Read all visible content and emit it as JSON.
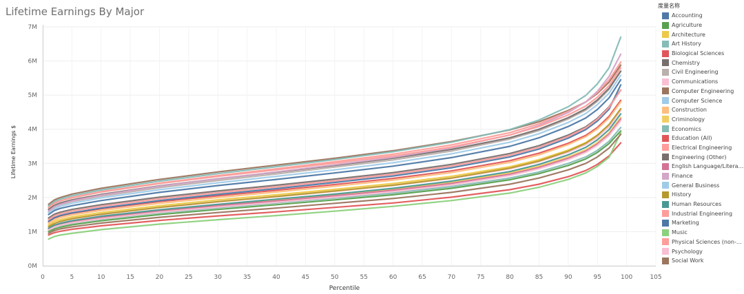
{
  "chart_data": {
    "type": "line",
    "title": "Lifetime Earnings By Major",
    "xlabel": "Percentile",
    "ylabel": "Lifetime Earnings $",
    "xlim": [
      0,
      105
    ],
    "ylim": [
      0,
      7000000
    ],
    "x_ticks": [
      0,
      5,
      10,
      15,
      20,
      25,
      30,
      35,
      40,
      45,
      50,
      55,
      60,
      65,
      70,
      75,
      80,
      85,
      90,
      95,
      100,
      105
    ],
    "y_ticks": [
      {
        "value": 0,
        "label": "0M"
      },
      {
        "value": 1000000,
        "label": "1M"
      },
      {
        "value": 2000000,
        "label": "2M"
      },
      {
        "value": 3000000,
        "label": "3M"
      },
      {
        "value": 4000000,
        "label": "4M"
      },
      {
        "value": 5000000,
        "label": "5M"
      },
      {
        "value": 6000000,
        "label": "6M"
      },
      {
        "value": 7000000,
        "label": "7M"
      }
    ],
    "grid": true,
    "legend_title": "度量名称",
    "legend_position": "right",
    "x": [
      1,
      2,
      3,
      5,
      10,
      20,
      30,
      40,
      50,
      60,
      70,
      80,
      85,
      90,
      93,
      95,
      97,
      99
    ],
    "series": [
      {
        "name": "Accounting",
        "color": "#4e79a7",
        "values": [
          1500000,
          1620000,
          1680000,
          1760000,
          1910000,
          2150000,
          2350000,
          2530000,
          2720000,
          2920000,
          3170000,
          3500000,
          3750000,
          4080000,
          4330000,
          4580000,
          4920000,
          5450000
        ]
      },
      {
        "name": "Agriculture",
        "color": "#59a14f",
        "values": [
          1000000,
          1080000,
          1130000,
          1200000,
          1320000,
          1500000,
          1650000,
          1790000,
          1930000,
          2080000,
          2270000,
          2520000,
          2700000,
          2940000,
          3130000,
          3320000,
          3580000,
          3950000
        ]
      },
      {
        "name": "Architecture",
        "color": "#edc948",
        "values": [
          1200000,
          1300000,
          1350000,
          1430000,
          1560000,
          1760000,
          1930000,
          2080000,
          2240000,
          2410000,
          2620000,
          2900000,
          3110000,
          3390000,
          3610000,
          3830000,
          4130000,
          4600000
        ]
      },
      {
        "name": "Art History",
        "color": "#86bcb6",
        "values": [
          1050000,
          1130000,
          1180000,
          1250000,
          1370000,
          1550000,
          1700000,
          1840000,
          1980000,
          2130000,
          2320000,
          2570000,
          2750000,
          3000000,
          3190000,
          3380000,
          3650000,
          4050000
        ]
      },
      {
        "name": "Biological Sciences",
        "color": "#e15759",
        "values": [
          1300000,
          1400000,
          1460000,
          1540000,
          1670000,
          1880000,
          2050000,
          2210000,
          2380000,
          2560000,
          2780000,
          3080000,
          3300000,
          3590000,
          3820000,
          4050000,
          4380000,
          4850000
        ]
      },
      {
        "name": "Chemistry",
        "color": "#79706e",
        "values": [
          1400000,
          1510000,
          1570000,
          1650000,
          1790000,
          2010000,
          2190000,
          2360000,
          2540000,
          2730000,
          2970000,
          3290000,
          3520000,
          3830000,
          4070000,
          4320000,
          4660000,
          5150000
        ]
      },
      {
        "name": "Civil Engineering",
        "color": "#bab0ac",
        "values": [
          1600000,
          1720000,
          1790000,
          1880000,
          2040000,
          2290000,
          2500000,
          2690000,
          2890000,
          3100000,
          3360000,
          3710000,
          3960000,
          4300000,
          4560000,
          4820000,
          5170000,
          5700000
        ]
      },
      {
        "name": "Communications",
        "color": "#fabfd2",
        "values": [
          1150000,
          1240000,
          1290000,
          1370000,
          1500000,
          1700000,
          1870000,
          2020000,
          2180000,
          2350000,
          2560000,
          2840000,
          3050000,
          3330000,
          3550000,
          3770000,
          4080000,
          4550000
        ]
      },
      {
        "name": "Computer Engineering",
        "color": "#9c755f",
        "values": [
          1800000,
          1930000,
          2000000,
          2100000,
          2270000,
          2530000,
          2750000,
          2950000,
          3150000,
          3370000,
          3640000,
          3980000,
          4220000,
          4550000,
          4800000,
          5050000,
          5380000,
          5880000
        ]
      },
      {
        "name": "Computer Science",
        "color": "#a0cbe8",
        "values": [
          1550000,
          1670000,
          1740000,
          1830000,
          1990000,
          2230000,
          2430000,
          2620000,
          2810000,
          3020000,
          3280000,
          3620000,
          3870000,
          4200000,
          4460000,
          4720000,
          5060000,
          5580000
        ]
      },
      {
        "name": "Construction",
        "color": "#ffbe7d",
        "values": [
          1250000,
          1350000,
          1410000,
          1490000,
          1620000,
          1830000,
          2000000,
          2160000,
          2330000,
          2510000,
          2730000,
          3030000,
          3250000,
          3550000,
          3780000,
          4010000,
          4330000,
          4800000
        ]
      },
      {
        "name": "Criminology",
        "color": "#f1ce63",
        "values": [
          1100000,
          1190000,
          1240000,
          1310000,
          1440000,
          1630000,
          1790000,
          1940000,
          2090000,
          2250000,
          2450000,
          2720000,
          2920000,
          3190000,
          3400000,
          3610000,
          3900000,
          4350000
        ]
      },
      {
        "name": "Economics",
        "color": "#86bcb6",
        "values": [
          1750000,
          1880000,
          1950000,
          2050000,
          2220000,
          2480000,
          2700000,
          2900000,
          3110000,
          3340000,
          3620000,
          3990000,
          4270000,
          4660000,
          4990000,
          5330000,
          5800000,
          6700000
        ]
      },
      {
        "name": "Education (All)",
        "color": "#e15759",
        "values": [
          900000,
          970000,
          1010000,
          1070000,
          1170000,
          1330000,
          1460000,
          1580000,
          1710000,
          1840000,
          2010000,
          2230000,
          2390000,
          2610000,
          2790000,
          2970000,
          3220000,
          3600000
        ]
      },
      {
        "name": "Electrical Engineering",
        "color": "#ff9d9a",
        "values": [
          1700000,
          1830000,
          1900000,
          2000000,
          2170000,
          2420000,
          2640000,
          2840000,
          3050000,
          3270000,
          3540000,
          3900000,
          4160000,
          4520000,
          4800000,
          5080000,
          5450000,
          5970000
        ]
      },
      {
        "name": "Engineering (Other)",
        "color": "#79706e",
        "values": [
          1650000,
          1770000,
          1840000,
          1930000,
          2090000,
          2340000,
          2550000,
          2740000,
          2940000,
          3150000,
          3410000,
          3750000,
          4000000,
          4340000,
          4600000,
          4860000,
          5200000,
          5700000
        ]
      },
      {
        "name": "English Language/Literature",
        "color": "#d37295",
        "values": [
          1080000,
          1170000,
          1220000,
          1290000,
          1410000,
          1600000,
          1760000,
          1900000,
          2050000,
          2210000,
          2410000,
          2680000,
          2880000,
          3150000,
          3360000,
          3570000,
          3860000,
          4300000
        ]
      },
      {
        "name": "Finance",
        "color": "#d4a6c8",
        "values": [
          1600000,
          1730000,
          1800000,
          1900000,
          2070000,
          2330000,
          2550000,
          2750000,
          2960000,
          3180000,
          3460000,
          3830000,
          4110000,
          4490000,
          4800000,
          5110000,
          5550000,
          6200000
        ]
      },
      {
        "name": "General Business",
        "color": "#a0cbe8",
        "values": [
          1350000,
          1460000,
          1520000,
          1600000,
          1740000,
          1960000,
          2140000,
          2310000,
          2490000,
          2680000,
          2920000,
          3240000,
          3470000,
          3790000,
          4040000,
          4290000,
          4640000,
          5150000
        ]
      },
      {
        "name": "History",
        "color": "#b6992d",
        "values": [
          1150000,
          1240000,
          1300000,
          1380000,
          1510000,
          1710000,
          1880000,
          2030000,
          2190000,
          2360000,
          2570000,
          2860000,
          3070000,
          3360000,
          3590000,
          3820000,
          4140000,
          4600000
        ]
      },
      {
        "name": "Human Resources",
        "color": "#499894",
        "values": [
          1100000,
          1190000,
          1240000,
          1320000,
          1450000,
          1640000,
          1800000,
          1950000,
          2100000,
          2270000,
          2480000,
          2760000,
          2970000,
          3250000,
          3470000,
          3690000,
          3990000,
          4450000
        ]
      },
      {
        "name": "Industrial Engineering",
        "color": "#ff9d9a",
        "values": [
          1700000,
          1830000,
          1900000,
          1990000,
          2160000,
          2410000,
          2620000,
          2810000,
          3010000,
          3220000,
          3480000,
          3830000,
          4080000,
          4420000,
          4680000,
          4940000,
          5280000,
          5800000
        ]
      },
      {
        "name": "Marketing",
        "color": "#4e79a7",
        "values": [
          1300000,
          1410000,
          1470000,
          1550000,
          1690000,
          1910000,
          2090000,
          2260000,
          2440000,
          2630000,
          2870000,
          3190000,
          3420000,
          3740000,
          3990000,
          4240000,
          4590000,
          5300000
        ]
      },
      {
        "name": "Music",
        "color": "#8cd17d",
        "values": [
          780000,
          860000,
          900000,
          950000,
          1060000,
          1220000,
          1350000,
          1470000,
          1600000,
          1740000,
          1910000,
          2130000,
          2300000,
          2530000,
          2720000,
          2910000,
          3180000,
          3900000
        ]
      },
      {
        "name": "Physical Sciences (non-Chemistry)",
        "color": "#ff9d9a",
        "values": [
          1350000,
          1460000,
          1520000,
          1600000,
          1740000,
          1960000,
          2140000,
          2310000,
          2490000,
          2680000,
          2920000,
          3240000,
          3470000,
          3790000,
          4040000,
          4290000,
          4640000,
          5150000
        ]
      },
      {
        "name": "Psychology",
        "color": "#fabfd2",
        "values": [
          1050000,
          1140000,
          1190000,
          1260000,
          1380000,
          1570000,
          1720000,
          1860000,
          2010000,
          2170000,
          2370000,
          2640000,
          2840000,
          3110000,
          3320000,
          3530000,
          3820000,
          4250000
        ]
      },
      {
        "name": "Social Work",
        "color": "#9c755f",
        "values": [
          950000,
          1030000,
          1080000,
          1140000,
          1250000,
          1420000,
          1560000,
          1690000,
          1830000,
          1970000,
          2150000,
          2390000,
          2570000,
          2810000,
          3000000,
          3190000,
          3450000,
          3850000
        ]
      }
    ]
  }
}
